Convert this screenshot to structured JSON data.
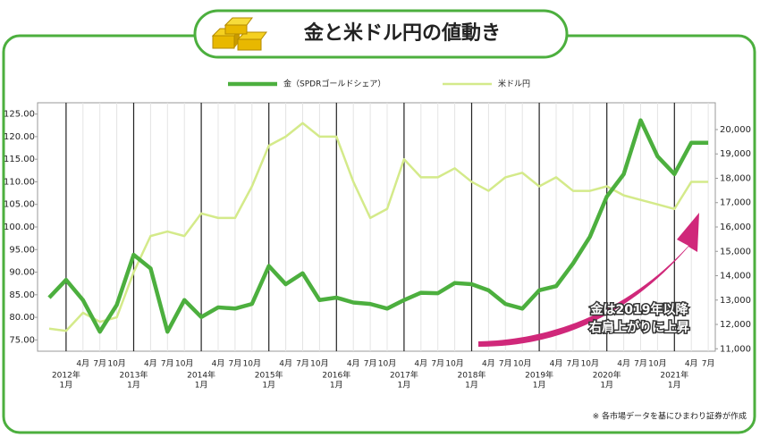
{
  "chart_data": {
    "type": "line",
    "title": "金と米ドル円の値動き",
    "categories": [
      null,
      "1月",
      "4月",
      "7月",
      "10月",
      "1月",
      "4月",
      "7月",
      "10月",
      "1月",
      "4月",
      "7月",
      "10月",
      "1月",
      "4月",
      "7月",
      "10月",
      "1月",
      "4月",
      "7月",
      "10月",
      "1月",
      "4月",
      "7月",
      "10月",
      "1月",
      "4月",
      "7月",
      "10月",
      "1月",
      "4月",
      "7月",
      "10月",
      "1月",
      "4月",
      "7月",
      "10月",
      "1月",
      "4月",
      "7月"
    ],
    "years": [
      "2012年",
      "2013年",
      "2014年",
      "2015年",
      "2016年",
      "2017年",
      "2018年",
      "2019年",
      "2020年",
      "2021年"
    ],
    "series": [
      {
        "name": "金（SPDRゴールドシェア）",
        "color": "#4caf3e",
        "axis": "y2",
        "values": [
          13100,
          13830,
          13000,
          11700,
          12800,
          14860,
          14300,
          11700,
          13000,
          12300,
          12700,
          12650,
          12840,
          14400,
          13650,
          14100,
          13000,
          13100,
          12900,
          12840,
          12650,
          13000,
          13300,
          13280,
          13700,
          13650,
          13400,
          12840,
          12650,
          13400,
          13570,
          14500,
          15600,
          17250,
          18170,
          20380,
          18900,
          18170,
          19460,
          19460
        ]
      },
      {
        "name": "米ドル円",
        "color": "#d4ea8a",
        "values": [
          77.5,
          77,
          81,
          79,
          80,
          90,
          98,
          99,
          98,
          103,
          102,
          102,
          109,
          118,
          120,
          123,
          120,
          120,
          110,
          102,
          104,
          115,
          111,
          111,
          113,
          110,
          108,
          111,
          112,
          109,
          111,
          108,
          108,
          109,
          107,
          106,
          105,
          104,
          110,
          110
        ]
      }
    ],
    "ylim": [
      72.5,
      127.5
    ],
    "yticks": [
      {
        "value": 75,
        "label": "75.00"
      },
      {
        "value": 80,
        "label": "80.00"
      },
      {
        "value": 85,
        "label": "85.00"
      },
      {
        "value": 90,
        "label": "90.00"
      },
      {
        "value": 95,
        "label": "95.00"
      },
      {
        "value": 100,
        "label": "100.00"
      },
      {
        "value": 105,
        "label": "105.00"
      },
      {
        "value": 110,
        "label": "110.00"
      },
      {
        "value": 115,
        "label": "115.00"
      },
      {
        "value": 120,
        "label": "120.00"
      },
      {
        "value": 125,
        "label": "125.00"
      }
    ],
    "y2lim": [
      10900,
      21100
    ],
    "y2ticks": [
      {
        "value": 11000,
        "label": "11,000"
      },
      {
        "value": 12000,
        "label": "12,000"
      },
      {
        "value": 13000,
        "label": "13,000"
      },
      {
        "value": 14000,
        "label": "14,000"
      },
      {
        "value": 15000,
        "label": "15,000"
      },
      {
        "value": 16000,
        "label": "16,000"
      },
      {
        "value": 17000,
        "label": "17,000"
      },
      {
        "value": 18000,
        "label": "18,000"
      },
      {
        "value": 19000,
        "label": "19,000"
      },
      {
        "value": 20000,
        "label": "20,000"
      }
    ],
    "annotation": [
      "金は2019年以降",
      "右肩上がりに上昇"
    ],
    "source": "※ 各市場データを基にひまわり証券が作成"
  }
}
